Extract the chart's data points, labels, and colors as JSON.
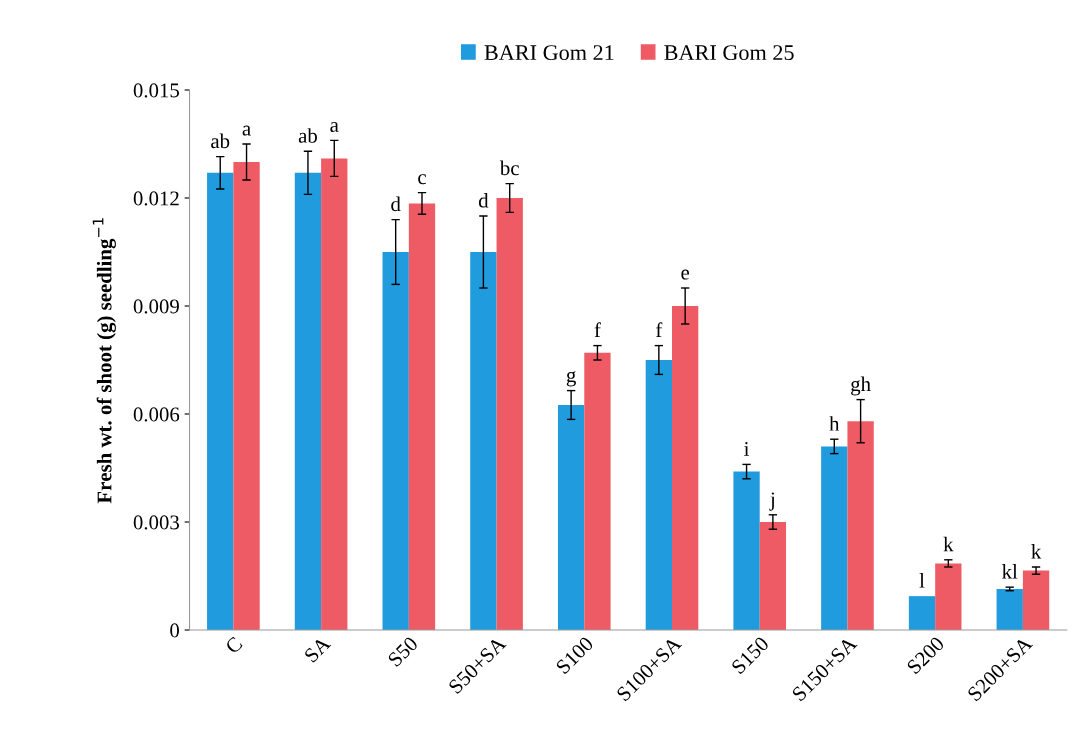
{
  "chart_data": {
    "type": "bar",
    "ylabel": "Fresh wt. of shoot (g) seedling$^{−1}$",
    "categories": [
      "C",
      "SA",
      "S50",
      "S50+SA",
      "S100",
      "S100+SA",
      "S150",
      "S150+SA",
      "S200",
      "S200+SA"
    ],
    "series": [
      {
        "name": "BARI Gom 21",
        "color": "#1f9bde",
        "values": [
          0.0127,
          0.0127,
          0.0105,
          0.0105,
          0.00625,
          0.0075,
          0.0044,
          0.0051,
          0.00094,
          0.00114
        ],
        "errors": [
          0.00045,
          0.0006,
          0.0009,
          0.001,
          0.0004,
          0.0004,
          0.0002,
          0.0002,
          null,
          5e-05
        ],
        "value_labels": [
          "ab",
          "ab",
          "d",
          "d",
          "g",
          "f",
          "i",
          "h",
          "l",
          "kl"
        ]
      },
      {
        "name": "BARI Gom 25",
        "color": "#ef5b64",
        "values": [
          0.013,
          0.0131,
          0.01185,
          0.012,
          0.0077,
          0.009,
          0.003,
          0.0058,
          0.00185,
          0.00165
        ],
        "errors": [
          0.0005,
          0.0005,
          0.0003,
          0.0004,
          0.0002,
          0.0005,
          0.0002,
          0.0006,
          0.0001,
          0.0001
        ],
        "value_labels": [
          "a",
          "a",
          "c",
          "bc",
          "f",
          "e",
          "j",
          "gh",
          "k",
          "k"
        ]
      }
    ],
    "ylim": [
      0,
      0.015
    ],
    "yticks": [
      0,
      0.003,
      0.006,
      0.009,
      0.012,
      0.015
    ],
    "grid": false,
    "legend": "top"
  }
}
